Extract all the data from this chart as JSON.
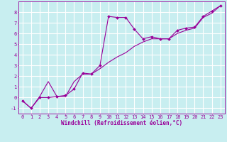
{
  "xlabel": "Windchill (Refroidissement éolien,°C)",
  "background_color": "#c8eef0",
  "grid_color": "#ffffff",
  "line_color": "#990099",
  "xlim": [
    -0.5,
    23.5
  ],
  "ylim": [
    -1.5,
    9.0
  ],
  "xticks": [
    0,
    1,
    2,
    3,
    4,
    5,
    6,
    7,
    8,
    9,
    10,
    11,
    12,
    13,
    14,
    15,
    16,
    17,
    18,
    19,
    20,
    21,
    22,
    23
  ],
  "yticks": [
    -1,
    0,
    1,
    2,
    3,
    4,
    5,
    6,
    7,
    8
  ],
  "series1_x": [
    0,
    1,
    2,
    3,
    4,
    5,
    6,
    7,
    8,
    9,
    10,
    11,
    12,
    13,
    14,
    15,
    16,
    17,
    18,
    19,
    20,
    21,
    22,
    23
  ],
  "series1_y": [
    -0.3,
    -1.0,
    0.0,
    0.0,
    0.1,
    0.2,
    0.8,
    2.3,
    2.2,
    3.0,
    7.6,
    7.5,
    7.5,
    6.4,
    5.5,
    5.7,
    5.5,
    5.5,
    6.3,
    6.5,
    6.6,
    7.6,
    8.1,
    8.6
  ],
  "series2_x": [
    0,
    1,
    2,
    3,
    4,
    5,
    6,
    7,
    8,
    9,
    10,
    11,
    12,
    13,
    14,
    15,
    16,
    17,
    18,
    19,
    20,
    21,
    22,
    23
  ],
  "series2_y": [
    -0.3,
    -1.0,
    0.1,
    1.5,
    0.1,
    0.1,
    1.5,
    2.2,
    2.2,
    2.7,
    3.3,
    3.8,
    4.2,
    4.8,
    5.2,
    5.5,
    5.5,
    5.5,
    6.0,
    6.3,
    6.5,
    7.5,
    7.9,
    8.6
  ],
  "lw": 0.8,
  "markersize": 2.0,
  "tick_fontsize": 5.0,
  "xlabel_fontsize": 5.5
}
